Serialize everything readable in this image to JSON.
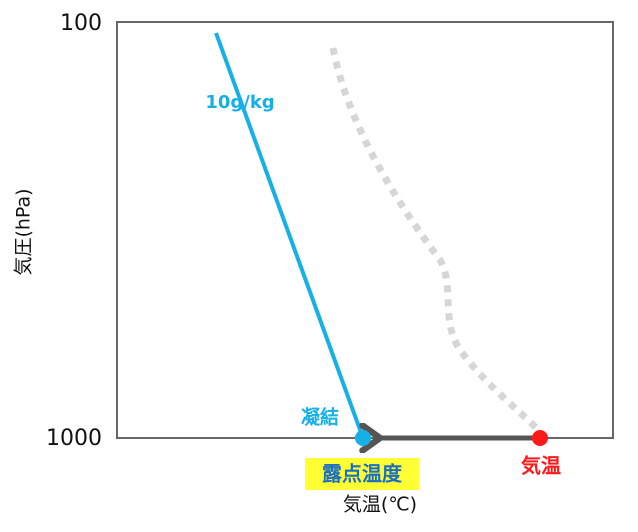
{
  "axes": {
    "y_ticks": [
      "100",
      "1000"
    ],
    "y_label": "気圧(hPa)",
    "x_label": "気温(℃)"
  },
  "labels": {
    "mixing_ratio": "10g/kg",
    "condensation": "凝結",
    "dew_point": "露点温度",
    "temperature": "気温"
  }
}
